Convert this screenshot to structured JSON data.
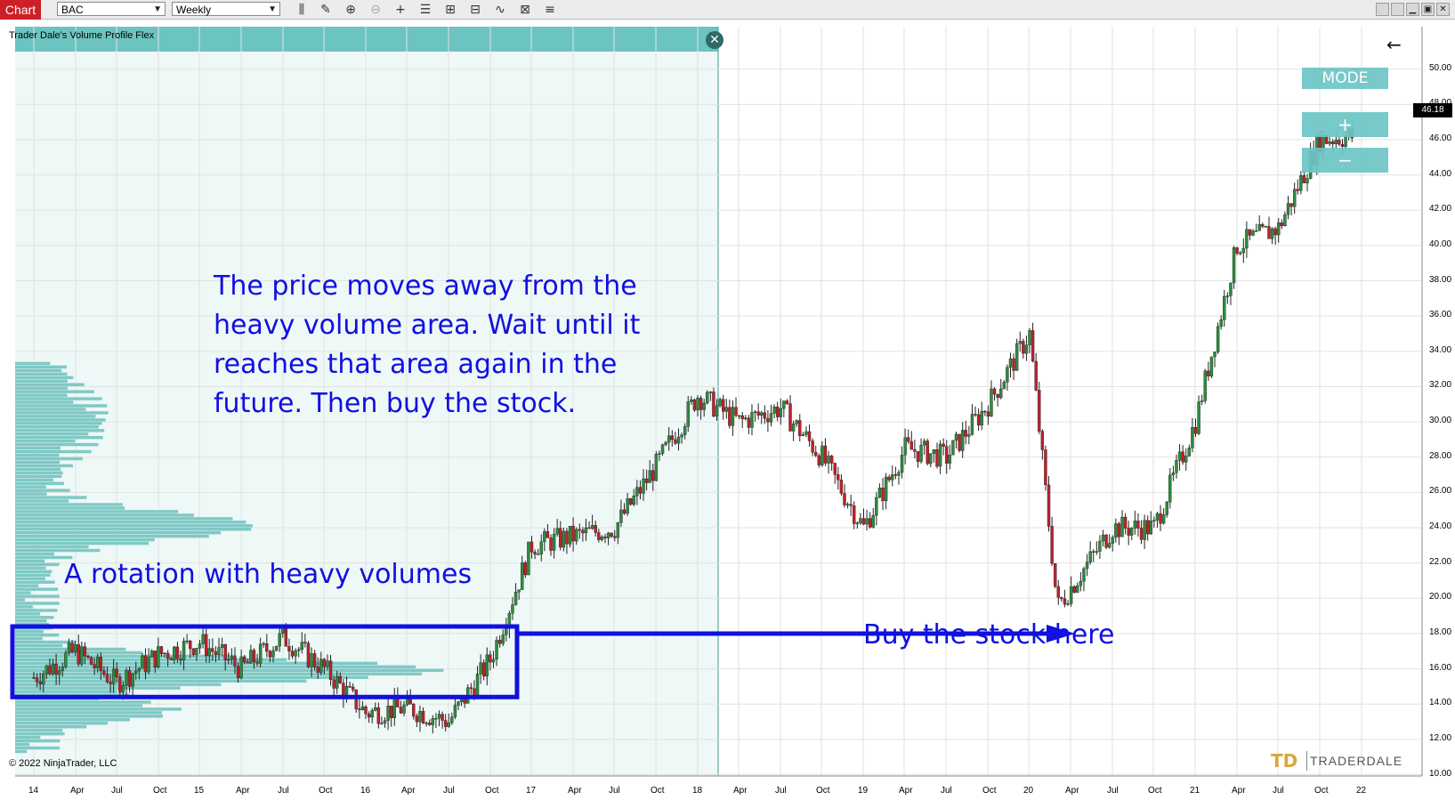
{
  "toolbar": {
    "chart_tab": "Chart",
    "instrument": "BAC",
    "period": "Weekly",
    "icons": [
      "bar-type-icon",
      "draw-pencil-icon",
      "zoom-in-icon",
      "zoom-out-icon",
      "crosshair-icon",
      "properties-icon",
      "indicators-icon",
      "strategies-icon",
      "drawing-tools-icon",
      "data-box-icon",
      "chart-trader-icon"
    ]
  },
  "window_controls": [
    "tile-icon",
    "tile2-icon",
    "minimize-icon",
    "maximize-icon",
    "close-icon"
  ],
  "indicator": {
    "label": "Trader Dale's Volume Profile Flex",
    "watermark": "TRADERDALE"
  },
  "copyright": "© 2022 NinjaTrader, LLC",
  "brand": {
    "logo": "TD",
    "name": "TRADERDALE"
  },
  "panel_buttons": {
    "mode": "MODE",
    "plus": "+",
    "minus": "−"
  },
  "last_price": "46.18",
  "annotations": {
    "main": "The price moves away from the heavy volume area. Wait until it reaches that area again in the future. Then buy the stock.",
    "rotation": "A rotation with heavy volumes",
    "buy": "Buy the stock here"
  },
  "colors": {
    "bull": "#2e8b3e",
    "bear": "#c0202a",
    "profile": "#7fc9c5",
    "annotation": "#1010e0"
  },
  "chart_data": {
    "type": "candlestick",
    "symbol": "BAC",
    "period": "Weekly",
    "ylim": [
      9.5,
      51
    ],
    "y_ticks": [
      "10.00",
      "12.00",
      "14.00",
      "16.00",
      "18.00",
      "20.00",
      "22.00",
      "24.00",
      "26.00",
      "28.00",
      "30.00",
      "32.00",
      "34.00",
      "36.00",
      "38.00",
      "40.00",
      "42.00",
      "44.00",
      "46.00",
      "48.00",
      "50.00"
    ],
    "x_ticks": [
      "14",
      "Apr",
      "Jul",
      "Oct",
      "15",
      "Apr",
      "Jul",
      "Oct",
      "16",
      "Apr",
      "Jul",
      "Oct",
      "17",
      "Apr",
      "Jul",
      "Oct",
      "18",
      "Apr",
      "Jul",
      "Oct",
      "19",
      "Apr",
      "Jul",
      "Oct",
      "20",
      "Apr",
      "Jul",
      "Oct",
      "21",
      "Apr",
      "Jul",
      "Oct",
      "22"
    ],
    "approx_close_path": [
      [
        "2014-01",
        15.5
      ],
      [
        "2014-04",
        17.0
      ],
      [
        "2014-07",
        15.2
      ],
      [
        "2014-10",
        16.8
      ],
      [
        "2015-01",
        17.5
      ],
      [
        "2015-04",
        16.0
      ],
      [
        "2015-07",
        17.8
      ],
      [
        "2015-10",
        16.0
      ],
      [
        "2016-01",
        13.5
      ],
      [
        "2016-04",
        13.8
      ],
      [
        "2016-07",
        13.0
      ],
      [
        "2016-10",
        16.5
      ],
      [
        "2017-01",
        23.0
      ],
      [
        "2017-04",
        23.5
      ],
      [
        "2017-07",
        24.0
      ],
      [
        "2017-10",
        27.5
      ],
      [
        "2018-01",
        31.5
      ],
      [
        "2018-04",
        30.0
      ],
      [
        "2018-07",
        30.8
      ],
      [
        "2018-10",
        28.0
      ],
      [
        "2019-01",
        24.0
      ],
      [
        "2019-04",
        28.5
      ],
      [
        "2019-07",
        28.0
      ],
      [
        "2019-10",
        31.0
      ],
      [
        "2020-01",
        35.0
      ],
      [
        "2020-03",
        19.5
      ],
      [
        "2020-07",
        24.0
      ],
      [
        "2020-10",
        24.0
      ],
      [
        "2021-01",
        30.0
      ],
      [
        "2021-04",
        40.0
      ],
      [
        "2021-07",
        41.0
      ],
      [
        "2021-10",
        46.0
      ],
      [
        "2021-12",
        46.18
      ]
    ],
    "volume_profile_peaks": [
      24.0,
      15.8
    ],
    "annotation_box_price_range": [
      14.4,
      18.4
    ],
    "arrow_target_price": 18.0
  }
}
